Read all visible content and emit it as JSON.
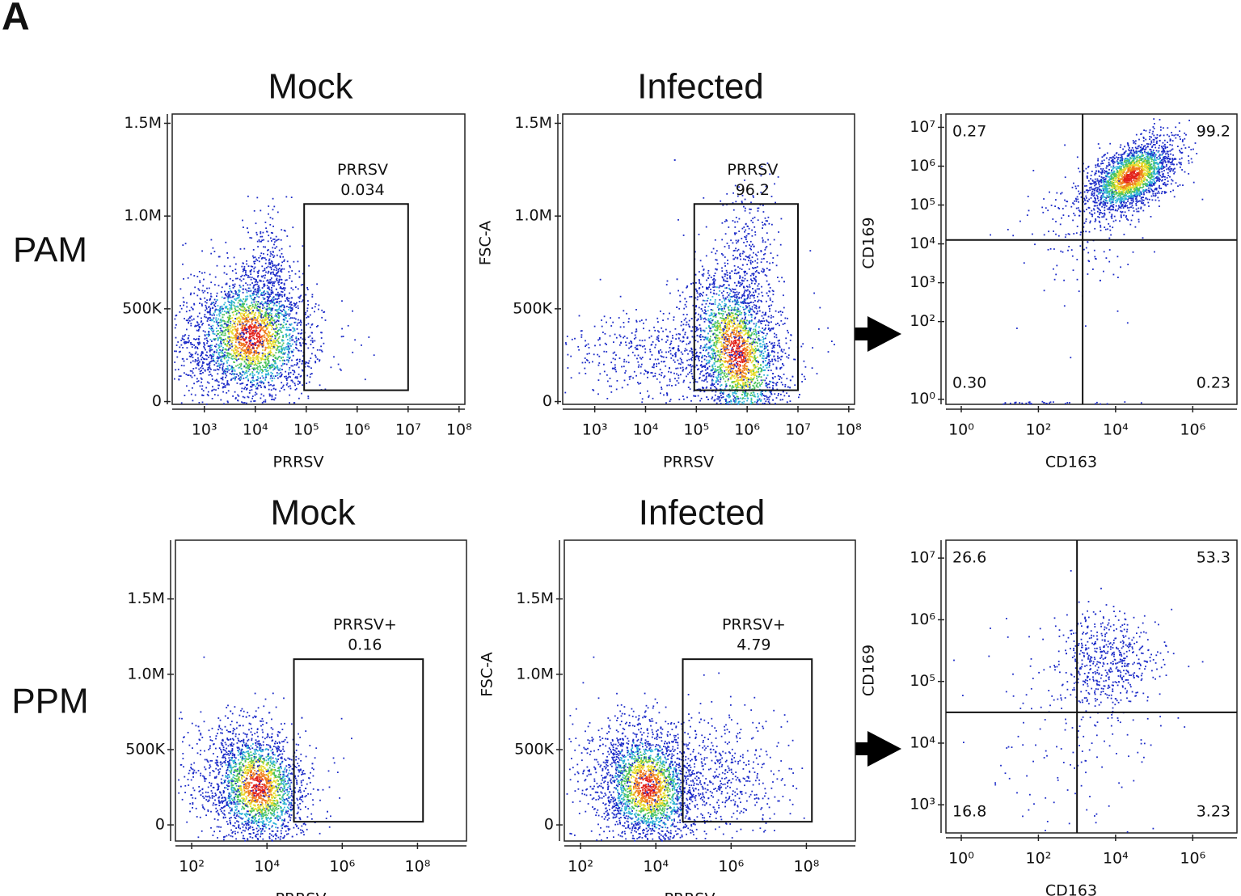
{
  "panel_label": "A",
  "row_labels": [
    "PAM",
    "PPM"
  ],
  "chart_data": [
    {
      "type": "scatter",
      "title": "Mock",
      "x_label": "PRRSV",
      "xscale": "log",
      "yscale": "linear",
      "xlim": [
        234,
        130000000
      ],
      "ylim": [
        -15000,
        1550000
      ],
      "xticks": [
        {
          "value": 1000,
          "label": "10³"
        },
        {
          "value": 10000,
          "label": "10⁴"
        },
        {
          "value": 100000,
          "label": "10⁵"
        },
        {
          "value": 1000000,
          "label": "10⁶"
        },
        {
          "value": 10000000,
          "label": "10⁷"
        },
        {
          "value": 100000000,
          "label": "10⁸"
        }
      ],
      "yticks": [
        0,
        {
          "value": 500000,
          "label": "500K"
        },
        {
          "value": 1000000,
          "label": "1.0M"
        },
        {
          "value": 1500000,
          "label": "1.5M"
        }
      ],
      "gate": {
        "name": "PRRSV",
        "value": 0.034,
        "x": [
          91000,
          10000000
        ],
        "y": [
          61000,
          1065000
        ]
      }
    },
    {
      "type": "scatter",
      "title": "Infected",
      "x_label": "PRRSV",
      "y_label": "FSC-A",
      "xscale": "log",
      "yscale": "linear",
      "xlim": [
        234,
        130000000
      ],
      "ylim": [
        -15000,
        1550000
      ],
      "xticks": [
        {
          "value": 1000,
          "label": "10³"
        },
        {
          "value": 10000,
          "label": "10⁴"
        },
        {
          "value": 100000,
          "label": "10⁵"
        },
        {
          "value": 1000000,
          "label": "10⁶"
        },
        {
          "value": 10000000,
          "label": "10⁷"
        },
        {
          "value": 100000000,
          "label": "10⁸"
        }
      ],
      "yticks": [
        0,
        {
          "value": 500000,
          "label": "500K"
        },
        {
          "value": 1000000,
          "label": "1.0M"
        },
        {
          "value": 1500000,
          "label": "1.5M"
        }
      ],
      "gate": {
        "name": "PRRSV",
        "value": 96.2,
        "x": [
          91000,
          10000000
        ],
        "y": [
          61000,
          1065000
        ]
      }
    },
    {
      "type": "quadrant",
      "x_label": "CD163",
      "y_label": "CD169",
      "xscale": "log",
      "yscale": "log",
      "xlim": [
        0.4,
        14000000
      ],
      "ylim": [
        0.74,
        22000000
      ],
      "xticks": [
        {
          "value": 1,
          "label": "10⁰"
        },
        {
          "value": 100,
          "label": "10²"
        },
        {
          "value": 10000,
          "label": "10⁴"
        },
        {
          "value": 1000000,
          "label": "10⁶"
        }
      ],
      "yticks": [
        {
          "value": 1,
          "label": "10⁰"
        },
        {
          "value": 100,
          "label": "10²"
        },
        {
          "value": 1000,
          "label": "10³"
        },
        {
          "value": 10000,
          "label": "10⁴"
        },
        {
          "value": 100000,
          "label": "10⁵"
        },
        {
          "value": 1000000,
          "label": "10⁶"
        },
        {
          "value": 10000000,
          "label": "10⁷"
        }
      ],
      "quadrants": {
        "x": 1400,
        "y": 12600,
        "values": [
          0.27,
          99.2,
          0.3,
          0.23
        ],
        "value_labels": [
          "0.27",
          "99.2",
          "0.30",
          "0.23"
        ]
      }
    },
    {
      "type": "scatter",
      "title": "Mock",
      "x_label": "PRRSV",
      "xscale": "log",
      "yscale": "linear",
      "xlim": [
        37,
        2000000000
      ],
      "ylim": [
        -107000,
        1890000
      ],
      "xticks": [
        {
          "value": 100,
          "label": "10²"
        },
        {
          "value": 10000,
          "label": "10⁴"
        },
        {
          "value": 1000000,
          "label": "10⁶"
        },
        {
          "value": 100000000,
          "label": "10⁸"
        }
      ],
      "yticks": [
        0,
        {
          "value": 500000,
          "label": "500K"
        },
        {
          "value": 1000000,
          "label": "1.0M"
        },
        {
          "value": 1500000,
          "label": "1.5M"
        }
      ],
      "gate": {
        "name": "PRRSV+",
        "value": 0.16,
        "x": [
          52000,
          140000000
        ],
        "y": [
          21000,
          1100000
        ]
      }
    },
    {
      "type": "scatter",
      "title": "Infected",
      "x_label": "PRRSV",
      "y_label": "FSC-A",
      "xscale": "log",
      "yscale": "linear",
      "xlim": [
        37,
        2000000000
      ],
      "ylim": [
        -107000,
        1890000
      ],
      "xticks": [
        {
          "value": 100,
          "label": "10²"
        },
        {
          "value": 10000,
          "label": "10⁴"
        },
        {
          "value": 1000000,
          "label": "10⁶"
        },
        {
          "value": 100000000,
          "label": "10⁸"
        }
      ],
      "yticks": [
        0,
        {
          "value": 500000,
          "label": "500K"
        },
        {
          "value": 1000000,
          "label": "1.0M"
        },
        {
          "value": 1500000,
          "label": "1.5M"
        }
      ],
      "gate": {
        "name": "PRRSV+",
        "value": 4.79,
        "x": [
          52000,
          140000000
        ],
        "y": [
          21000,
          1100000
        ]
      }
    },
    {
      "type": "quadrant",
      "x_label": "CD163",
      "y_label": "CD169",
      "xscale": "log",
      "yscale": "log",
      "xlim": [
        0.4,
        14000000
      ],
      "ylim": [
        350,
        19500000
      ],
      "xticks": [
        {
          "value": 1,
          "label": "10⁰"
        },
        {
          "value": 100,
          "label": "10²"
        },
        {
          "value": 10000,
          "label": "10⁴"
        },
        {
          "value": 1000000,
          "label": "10⁶"
        }
      ],
      "yticks": [
        {
          "value": 1000,
          "label": "10³"
        },
        {
          "value": 10000,
          "label": "10⁴"
        },
        {
          "value": 100000,
          "label": "10⁵"
        },
        {
          "value": 1000000,
          "label": "10⁶"
        },
        {
          "value": 10000000,
          "label": "10⁷"
        }
      ],
      "quadrants": {
        "x": 1000,
        "y": 31600,
        "values": [
          26.6,
          53.3,
          16.8,
          3.23
        ],
        "value_labels": [
          "26.6",
          "53.3",
          "16.8",
          "3.23"
        ]
      }
    }
  ]
}
